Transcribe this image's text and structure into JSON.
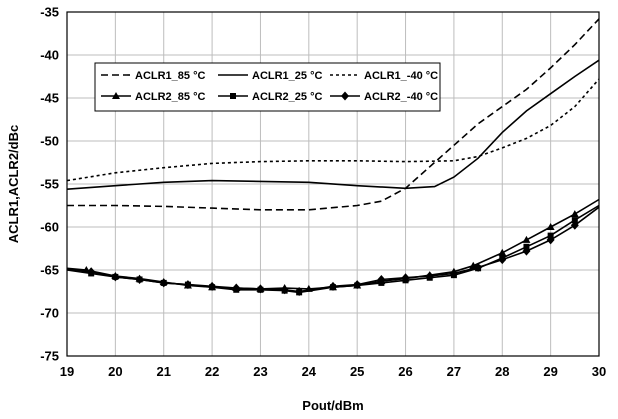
{
  "chart_data": {
    "type": "line",
    "xlabel": "Pout/dBm",
    "ylabel": "ACLR1,ACLR2/dBc",
    "xlim": [
      19,
      30
    ],
    "ylim": [
      -75,
      -35
    ],
    "xticks": [
      "19",
      "20",
      "21",
      "22",
      "23",
      "24",
      "25",
      "26",
      "27",
      "28",
      "29",
      "30"
    ],
    "yticks": [
      "-35",
      "-40",
      "-45",
      "-50",
      "-55",
      "-60",
      "-65",
      "-70",
      "-75"
    ],
    "grid": true,
    "legend": "top-left-inside",
    "series": [
      {
        "name": "ACLR1_85 °C",
        "dash": "dash",
        "marker": "none",
        "points": [
          [
            19,
            -57.5
          ],
          [
            20,
            -57.5
          ],
          [
            21,
            -57.6
          ],
          [
            22,
            -57.8
          ],
          [
            23,
            -58
          ],
          [
            24,
            -58
          ],
          [
            25,
            -57.5
          ],
          [
            25.5,
            -57
          ],
          [
            26,
            -55.5
          ],
          [
            26.5,
            -53
          ],
          [
            27,
            -50.5
          ],
          [
            27.5,
            -48
          ],
          [
            28,
            -46
          ],
          [
            28.5,
            -44
          ],
          [
            29,
            -41.5
          ],
          [
            29.5,
            -38.8
          ],
          [
            30,
            -35.8
          ]
        ]
      },
      {
        "name": "ACLR1_25 °C",
        "dash": "solid",
        "marker": "none",
        "points": [
          [
            19,
            -55.6
          ],
          [
            20,
            -55.2
          ],
          [
            21,
            -54.8
          ],
          [
            22,
            -54.6
          ],
          [
            23,
            -54.7
          ],
          [
            24,
            -54.8
          ],
          [
            25,
            -55.2
          ],
          [
            26,
            -55.5
          ],
          [
            26.6,
            -55.3
          ],
          [
            27,
            -54.2
          ],
          [
            27.5,
            -52
          ],
          [
            28,
            -49
          ],
          [
            28.5,
            -46.5
          ],
          [
            29,
            -44.5
          ],
          [
            29.5,
            -42.5
          ],
          [
            30,
            -40.6
          ]
        ]
      },
      {
        "name": "ACLR1_-40 °C",
        "dash": "shortdash",
        "marker": "none",
        "points": [
          [
            19,
            -54.6
          ],
          [
            20,
            -53.7
          ],
          [
            21,
            -53.1
          ],
          [
            22,
            -52.6
          ],
          [
            23,
            -52.4
          ],
          [
            24,
            -52.3
          ],
          [
            25,
            -52.3
          ],
          [
            26,
            -52.4
          ],
          [
            27,
            -52.3
          ],
          [
            27.5,
            -51.8
          ],
          [
            28,
            -50.8
          ],
          [
            28.5,
            -49.7
          ],
          [
            29,
            -48.2
          ],
          [
            29.5,
            -46
          ],
          [
            30,
            -42.8
          ]
        ]
      },
      {
        "name": "ACLR2_85 °C",
        "dash": "solid",
        "marker": "triangle",
        "points": [
          [
            19,
            -64.8
          ],
          [
            19.4,
            -65
          ],
          [
            20,
            -65.7
          ],
          [
            20.5,
            -66
          ],
          [
            21,
            -66.4
          ],
          [
            21.5,
            -66.8
          ],
          [
            22,
            -67
          ],
          [
            22.5,
            -67.1
          ],
          [
            23,
            -67.2
          ],
          [
            23.5,
            -67.1
          ],
          [
            24,
            -67.2
          ],
          [
            24.5,
            -67
          ],
          [
            25,
            -66.8
          ],
          [
            25.5,
            -66.3
          ],
          [
            26,
            -66
          ],
          [
            26.5,
            -65.6
          ],
          [
            27,
            -65.2
          ],
          [
            27.4,
            -64.5
          ],
          [
            28,
            -63
          ],
          [
            28.5,
            -61.5
          ],
          [
            29,
            -60
          ],
          [
            29.5,
            -58.5
          ],
          [
            30,
            -56.8
          ]
        ]
      },
      {
        "name": "ACLR2_25 °C",
        "dash": "solid",
        "marker": "square",
        "points": [
          [
            19,
            -65
          ],
          [
            19.5,
            -65.4
          ],
          [
            20,
            -65.8
          ],
          [
            20.5,
            -66.1
          ],
          [
            21,
            -66.5
          ],
          [
            21.5,
            -66.7
          ],
          [
            22,
            -67
          ],
          [
            22.5,
            -67.3
          ],
          [
            23,
            -67.3
          ],
          [
            23.5,
            -67.4
          ],
          [
            23.8,
            -67.6
          ],
          [
            24.5,
            -67
          ],
          [
            25,
            -66.8
          ],
          [
            25.5,
            -66.5
          ],
          [
            26,
            -66.2
          ],
          [
            26.5,
            -65.9
          ],
          [
            27,
            -65.6
          ],
          [
            27.5,
            -64.8
          ],
          [
            28,
            -63.6
          ],
          [
            28.5,
            -62.3
          ],
          [
            29,
            -61
          ],
          [
            29.5,
            -59.2
          ],
          [
            30,
            -57.5
          ]
        ]
      },
      {
        "name": "ACLR2_-40 °C",
        "dash": "solid",
        "marker": "diamond",
        "points": [
          [
            19,
            -64.9
          ],
          [
            19.5,
            -65.2
          ],
          [
            20,
            -65.8
          ],
          [
            20.5,
            -66.1
          ],
          [
            21,
            -66.5
          ],
          [
            21.5,
            -66.7
          ],
          [
            22,
            -66.9
          ],
          [
            22.5,
            -67.1
          ],
          [
            23,
            -67.2
          ],
          [
            23.5,
            -67.3
          ],
          [
            23.8,
            -67.5
          ],
          [
            24.5,
            -66.9
          ],
          [
            25,
            -66.7
          ],
          [
            25.5,
            -66.1
          ],
          [
            26,
            -65.9
          ],
          [
            26.5,
            -65.7
          ],
          [
            27,
            -65.4
          ],
          [
            27.5,
            -64.7
          ],
          [
            28,
            -63.8
          ],
          [
            28.5,
            -62.8
          ],
          [
            29,
            -61.5
          ],
          [
            29.5,
            -59.8
          ],
          [
            30,
            -57.7
          ]
        ]
      }
    ]
  }
}
